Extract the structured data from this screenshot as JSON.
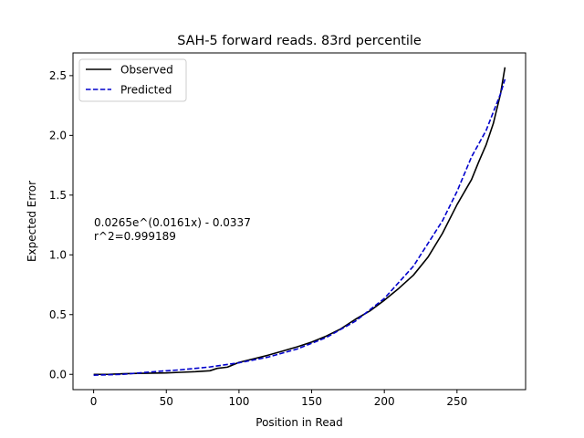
{
  "chart_data": {
    "type": "line",
    "title": "SAH-5 forward reads. 83rd percentile",
    "xlabel": "Position in Read",
    "ylabel": "Expected Error",
    "xlim": [
      -14.2,
      297.2
    ],
    "ylim": [
      -0.128,
      2.69
    ],
    "xticks": [
      0,
      50,
      100,
      150,
      200,
      250
    ],
    "yticks": [
      0.0,
      0.5,
      1.0,
      1.5,
      2.0,
      2.5
    ],
    "xtick_labels": [
      "0",
      "50",
      "100",
      "150",
      "200",
      "250"
    ],
    "ytick_labels": [
      "0.0",
      "0.5",
      "1.0",
      "1.5",
      "2.0",
      "2.5"
    ],
    "grid": false,
    "legend": "top-left",
    "annotations": [
      "0.0265e^(0.0161x) - 0.0337",
      "r^2=0.999189"
    ],
    "series": [
      {
        "name": "Observed",
        "color": "#000000",
        "style": "solid",
        "x": [
          0,
          10,
          20,
          30,
          40,
          50,
          60,
          70,
          80,
          85,
          92,
          100,
          110,
          120,
          130,
          140,
          150,
          160,
          170,
          180,
          190,
          200,
          210,
          220,
          230,
          240,
          250,
          260,
          265,
          270,
          275,
          280,
          283
        ],
        "y": [
          0.0,
          0.0,
          0.005,
          0.008,
          0.01,
          0.012,
          0.017,
          0.022,
          0.03,
          0.05,
          0.06,
          0.1,
          0.13,
          0.16,
          0.195,
          0.23,
          0.27,
          0.32,
          0.38,
          0.46,
          0.53,
          0.62,
          0.72,
          0.83,
          0.98,
          1.18,
          1.42,
          1.63,
          1.78,
          1.92,
          2.1,
          2.35,
          2.57
        ]
      },
      {
        "name": "Predicted",
        "color": "#0000cc",
        "style": "dashed",
        "x": [
          0,
          20,
          40,
          60,
          80,
          100,
          120,
          140,
          160,
          180,
          200,
          220,
          240,
          250,
          260,
          270,
          280,
          283
        ],
        "y": [
          -0.007,
          0.0,
          0.021,
          0.038,
          0.062,
          0.097,
          0.144,
          0.212,
          0.308,
          0.444,
          0.635,
          0.905,
          1.285,
          1.53,
          1.82,
          2.04,
          2.35,
          2.47
        ]
      }
    ]
  }
}
